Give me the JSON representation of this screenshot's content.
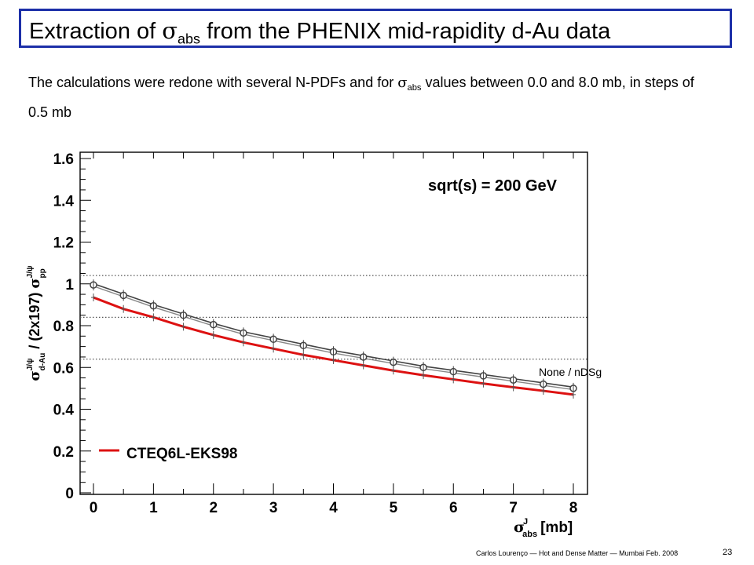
{
  "slide": {
    "title_pre": "Extraction of ",
    "title_sigma": "σ",
    "title_sub": "abs",
    "title_post": " from the PHENIX mid-rapidity d-Au data",
    "body_pre": "The calculations were redone with several N-PDFs and for ",
    "body_sigma": "σ",
    "body_sub": "abs",
    "body_post": " values between 0.0 and 8.0 mb, in steps of 0.5 mb",
    "footer": "Carlos Lourenço — Hot and Dense Matter — Mumbai Feb. 2008",
    "page_number": "23"
  },
  "chart_data": {
    "type": "line",
    "x": [
      0,
      0.5,
      1,
      1.5,
      2,
      2.5,
      3,
      3.5,
      4,
      4.5,
      5,
      5.5,
      6,
      6.5,
      7,
      7.5,
      8
    ],
    "xlim": [
      -0.25,
      8.3
    ],
    "ylim": [
      0,
      1.6
    ],
    "xticks": [
      "0",
      "1",
      "2",
      "3",
      "4",
      "5",
      "6",
      "7",
      "8"
    ],
    "yticks": [
      "0",
      "0.2",
      "0.4",
      "0.6",
      "0.8",
      "1",
      "1.2",
      "1.4",
      "1.6"
    ],
    "xlabel": "σ^J_abs [mb]",
    "ylabel": "σ^J/ψ_d-Au / (2x197) σ^J/ψ_pp",
    "annotation": "sqrt(s) = 200 GeV",
    "grid": false,
    "hlines": [
      1.04,
      0.84,
      0.64
    ],
    "hline_color": "#555555",
    "series": [
      {
        "name": "None / nDSg",
        "color": "#444444",
        "marker": "open-circle",
        "values": [
          0.995,
          0.945,
          0.895,
          0.85,
          0.805,
          0.765,
          0.735,
          0.705,
          0.675,
          0.65,
          0.625,
          0.6,
          0.58,
          0.56,
          0.54,
          0.52,
          0.5
        ]
      },
      {
        "name": "CTEQ6L-EKS98",
        "color": "#dd1111",
        "marker": "small-cross",
        "values": [
          0.935,
          0.88,
          0.84,
          0.795,
          0.755,
          0.72,
          0.69,
          0.66,
          0.635,
          0.61,
          0.585,
          0.563,
          0.543,
          0.523,
          0.505,
          0.488,
          0.47
        ]
      }
    ],
    "legend": {
      "label": "CTEQ6L-EKS98",
      "color": "#dd1111",
      "position": "bottom-left"
    },
    "inline_label": "None / nDSg"
  }
}
